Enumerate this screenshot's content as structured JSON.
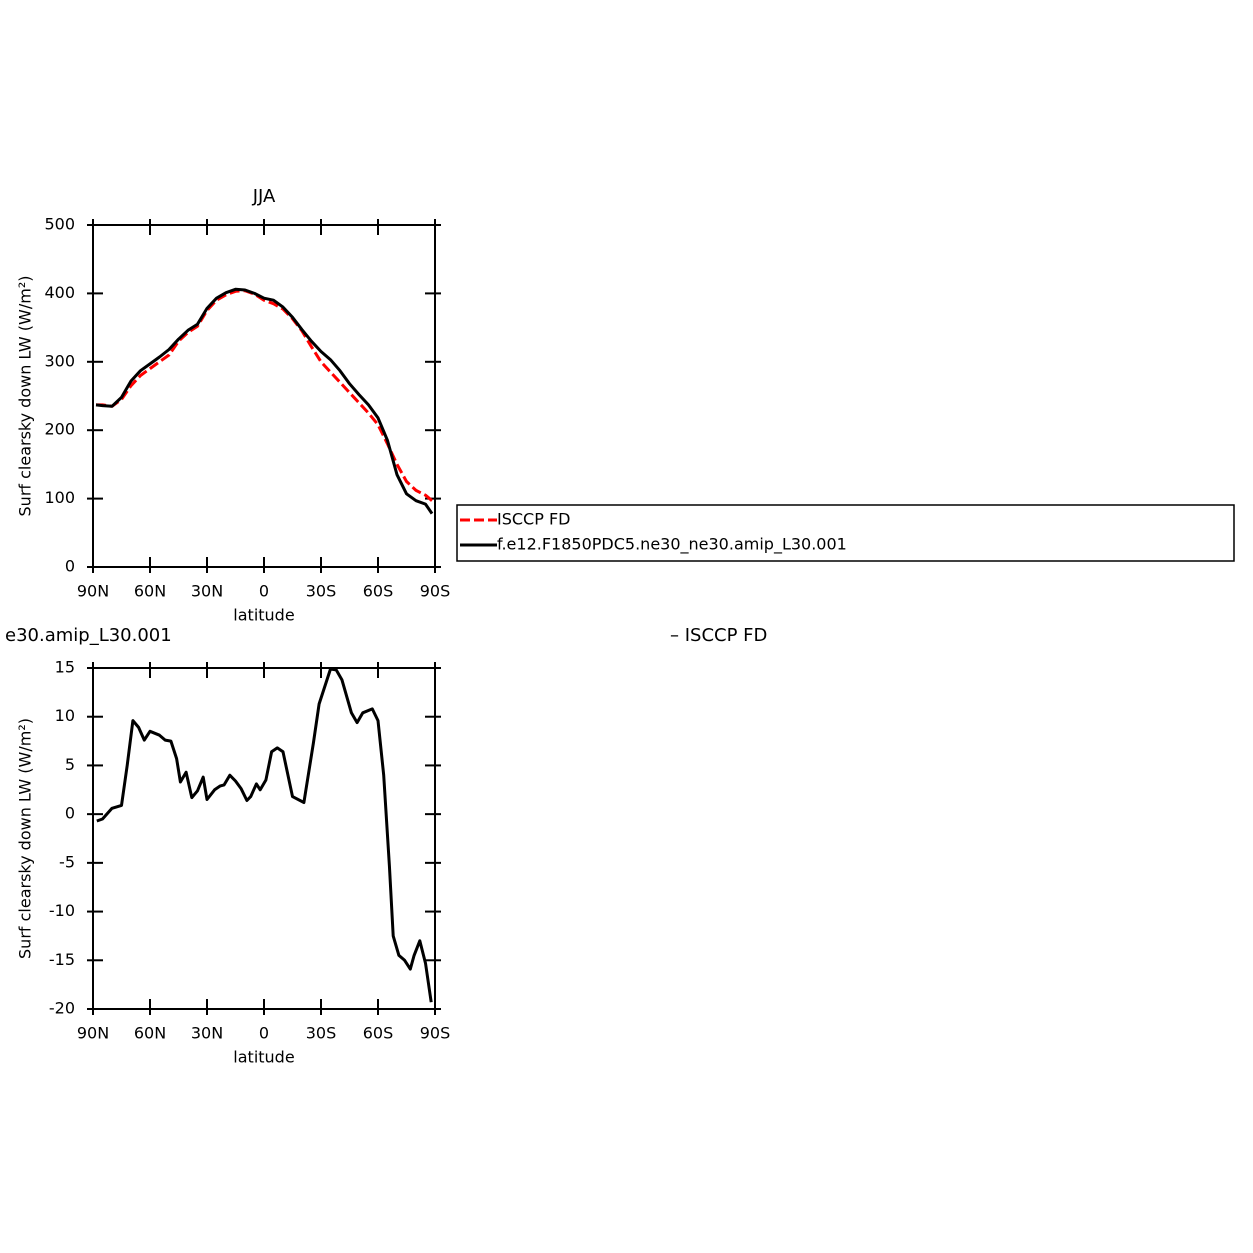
{
  "chart_data": [
    {
      "type": "line",
      "title": "JJA",
      "xlabel": "latitude",
      "ylabel": "Surf clearsky down LW (W/m²)",
      "x": [
        88.4,
        85,
        80,
        75,
        70,
        65,
        60,
        55,
        50,
        45,
        40,
        35,
        30,
        25,
        20,
        15,
        10,
        5,
        0,
        -5,
        -10,
        -15,
        -20,
        -25,
        -30,
        -35,
        -40,
        -45,
        -50,
        -55,
        -60,
        -65,
        -70,
        -75,
        -80,
        -85,
        -88.4
      ],
      "series": [
        {
          "name": "ISCCP FD",
          "color": "#ff0000",
          "dash": true,
          "values": [
            237,
            237,
            235,
            245,
            265,
            280,
            290,
            300,
            310,
            330,
            343,
            352,
            375,
            390,
            398,
            403,
            404,
            399,
            390,
            385,
            377,
            363,
            345,
            322,
            300,
            285,
            270,
            255,
            240,
            225,
            208,
            180,
            150,
            125,
            112,
            105,
            97
          ]
        },
        {
          "name": "f.e12.F1850PDC5.ne30_ne30.amip_L30.001",
          "color": "#000000",
          "dash": false,
          "values": [
            237,
            236,
            235,
            248,
            272,
            287,
            297,
            307,
            318,
            333,
            346,
            355,
            378,
            393,
            401,
            406,
            405,
            400,
            393,
            390,
            380,
            365,
            347,
            330,
            315,
            303,
            287,
            268,
            252,
            237,
            218,
            185,
            135,
            107,
            97,
            92,
            78
          ]
        }
      ],
      "xlim": [
        90,
        -90
      ],
      "xticks": [
        {
          "value": 90,
          "label": "90N"
        },
        {
          "value": 60,
          "label": "60N"
        },
        {
          "value": 30,
          "label": "30N"
        },
        0,
        {
          "value": -30,
          "label": "30S"
        },
        {
          "value": -60,
          "label": "60S"
        },
        {
          "value": -90,
          "label": "90S"
        }
      ],
      "ylim": [
        0,
        500
      ],
      "yticks": [
        0,
        100,
        200,
        300,
        400,
        500
      ],
      "legend": "outside-right"
    },
    {
      "type": "line",
      "left_title": "e30.amip_L30.001",
      "right_title": "– ISCCP FD",
      "xlabel": "latitude",
      "ylabel": "Surf clearsky down LW (W/m²)",
      "color": "#000000",
      "x": [
        88,
        85,
        80,
        75,
        72,
        69,
        66,
        63,
        60,
        55,
        52,
        49,
        46,
        44,
        41,
        38,
        35,
        32,
        30,
        26,
        23,
        21,
        18,
        15,
        12,
        9,
        7,
        4,
        2,
        -1,
        -4,
        -7,
        -10,
        -15,
        -21,
        -26,
        -29,
        -35,
        -38,
        -41,
        -46,
        -49,
        -52,
        -57,
        -60,
        -63,
        -66,
        -68,
        -71,
        -74,
        -77,
        -79,
        -82,
        -85,
        -88
      ],
      "values": [
        -0.7,
        -0.5,
        0.6,
        0.9,
        5,
        9.6,
        8.9,
        7.6,
        8.5,
        8.1,
        7.6,
        7.5,
        5.7,
        3.3,
        4.3,
        1.7,
        2.4,
        3.8,
        1.5,
        2.5,
        2.9,
        3.0,
        4.0,
        3.4,
        2.6,
        1.4,
        1.8,
        3.1,
        2.5,
        3.5,
        6.4,
        6.8,
        6.4,
        1.8,
        1.2,
        7.3,
        11.3,
        14.9,
        14.8,
        13.8,
        10.4,
        9.4,
        10.4,
        10.8,
        9.6,
        4.0,
        -5.3,
        -12.5,
        -14.5,
        -15.0,
        -15.9,
        -14.5,
        -13.0,
        -15.3,
        -19.3
      ],
      "xlim": [
        90,
        -90
      ],
      "xticks": [
        {
          "value": 90,
          "label": "90N"
        },
        {
          "value": 60,
          "label": "60N"
        },
        {
          "value": 30,
          "label": "30N"
        },
        0,
        {
          "value": -30,
          "label": "30S"
        },
        {
          "value": -60,
          "label": "60S"
        },
        {
          "value": -90,
          "label": "90S"
        }
      ],
      "ylim": [
        -20,
        15
      ],
      "yticks": [
        15,
        10,
        5,
        0,
        -5,
        -10,
        -15,
        -20
      ]
    }
  ]
}
